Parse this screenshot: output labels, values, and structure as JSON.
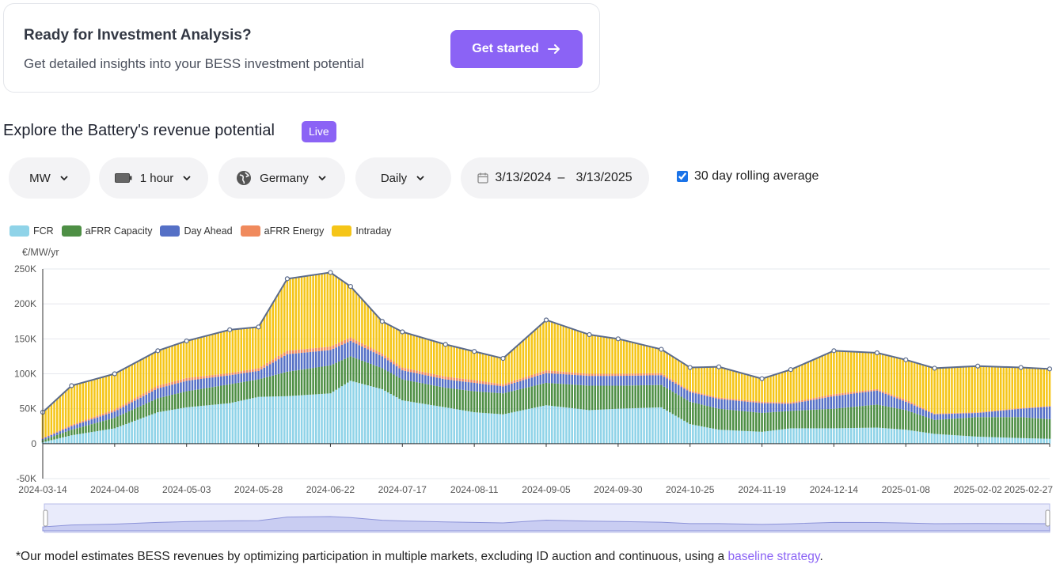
{
  "promo": {
    "title": "Ready for Investment Analysis?",
    "subtitle": "Get detailed insights into your BESS investment potential",
    "cta_label": "Get started"
  },
  "section": {
    "title": "Explore the Battery's revenue potential",
    "badge": "Live"
  },
  "filters": {
    "unit": "MW",
    "duration": "1 hour",
    "country": "Germany",
    "granularity": "Daily",
    "date_start": "3/13/2024",
    "date_sep": "–",
    "date_end": "3/13/2025",
    "rolling_label": "30 day rolling average",
    "rolling_checked": true
  },
  "footnote": {
    "text": "*Our model estimates BESS revenues by optimizing participation in multiple markets, excluding ID auction and continuous, using a ",
    "link": "baseline strategy",
    "end": "."
  },
  "chart_data": {
    "type": "bar",
    "stacked": true,
    "ylabel": "€/MW/yr",
    "ylim": [
      -50000,
      250000
    ],
    "yticks": [
      "-50K",
      "0",
      "50K",
      "100K",
      "150K",
      "200K",
      "250K"
    ],
    "xticks": [
      "2024-03-14",
      "2024-04-08",
      "2024-05-03",
      "2024-05-28",
      "2024-06-22",
      "2024-07-17",
      "2024-08-11",
      "2024-09-05",
      "2024-09-30",
      "2024-10-25",
      "2024-11-19",
      "2024-12-14",
      "2025-01-08",
      "2025-02-02",
      "2025-02-27"
    ],
    "legend_position": "top-left",
    "grid": true,
    "colors": {
      "FCR": "#8fd3e8",
      "aFRR Capacity": "#4e8f45",
      "Day Ahead": "#5570c6",
      "aFRR Energy": "#f08a5d",
      "Intraday": "#f5c518",
      "line": "#5b6b8c"
    },
    "x_dates": [
      "2024-03-14",
      "2024-03-24",
      "2024-04-08",
      "2024-04-23",
      "2024-05-03",
      "2024-05-18",
      "2024-05-28",
      "2024-06-07",
      "2024-06-22",
      "2024-06-29",
      "2024-07-10",
      "2024-07-17",
      "2024-08-01",
      "2024-08-11",
      "2024-08-21",
      "2024-09-05",
      "2024-09-20",
      "2024-09-30",
      "2024-10-15",
      "2024-10-25",
      "2024-11-04",
      "2024-11-19",
      "2024-11-29",
      "2024-12-14",
      "2024-12-29",
      "2025-01-08",
      "2025-01-18",
      "2025-02-02",
      "2025-02-17",
      "2025-02-27"
    ],
    "series": [
      {
        "name": "FCR",
        "values": [
          2000,
          12000,
          22000,
          45000,
          52000,
          58000,
          67000,
          68000,
          72000,
          90000,
          78000,
          62000,
          52000,
          45000,
          42000,
          55000,
          48000,
          50000,
          52000,
          28000,
          20000,
          17000,
          22000,
          22000,
          23000,
          20000,
          14000,
          10000,
          8000,
          7000
        ]
      },
      {
        "name": "aFRR Capacity",
        "values": [
          3000,
          8000,
          15000,
          20000,
          23000,
          27000,
          25000,
          35000,
          40000,
          35000,
          30000,
          30000,
          28000,
          30000,
          30000,
          32000,
          35000,
          33000,
          32000,
          32000,
          30000,
          27000,
          25000,
          28000,
          33000,
          28000,
          20000,
          28000,
          30000,
          28000
        ]
      },
      {
        "name": "Day Ahead",
        "values": [
          2000,
          5000,
          9000,
          14000,
          15000,
          13000,
          12000,
          25000,
          22000,
          22000,
          17000,
          13000,
          12000,
          12000,
          10000,
          14000,
          14000,
          14000,
          14000,
          14000,
          14000,
          14000,
          10000,
          18000,
          20000,
          12000,
          8000,
          6000,
          12000,
          18000
        ]
      },
      {
        "name": "aFRR Energy",
        "values": [
          1000,
          2000,
          3000,
          4000,
          4000,
          3000,
          4000,
          5000,
          5000,
          5000,
          4000,
          4000,
          4000,
          4000,
          3000,
          4000,
          3000,
          3000,
          3000,
          2000,
          2000,
          2000,
          2000,
          3000,
          2000,
          3000,
          1000,
          1000,
          1000,
          1000
        ]
      },
      {
        "name": "Intraday",
        "values": [
          37000,
          56000,
          51000,
          50000,
          53000,
          62000,
          59000,
          103000,
          106000,
          73000,
          46000,
          51000,
          46000,
          41000,
          37000,
          72000,
          56000,
          50000,
          34000,
          33000,
          44000,
          33000,
          47000,
          62000,
          52000,
          57000,
          65000,
          66000,
          58000,
          53000
        ]
      }
    ],
    "rolling_total": [
      45000,
      83000,
      100000,
      133000,
      147000,
      163000,
      167000,
      236000,
      245000,
      225000,
      175000,
      160000,
      142000,
      132000,
      122000,
      177000,
      156000,
      150000,
      135000,
      109000,
      110000,
      93000,
      106000,
      133000,
      130000,
      120000,
      108000,
      111000,
      109000,
      107000
    ]
  }
}
